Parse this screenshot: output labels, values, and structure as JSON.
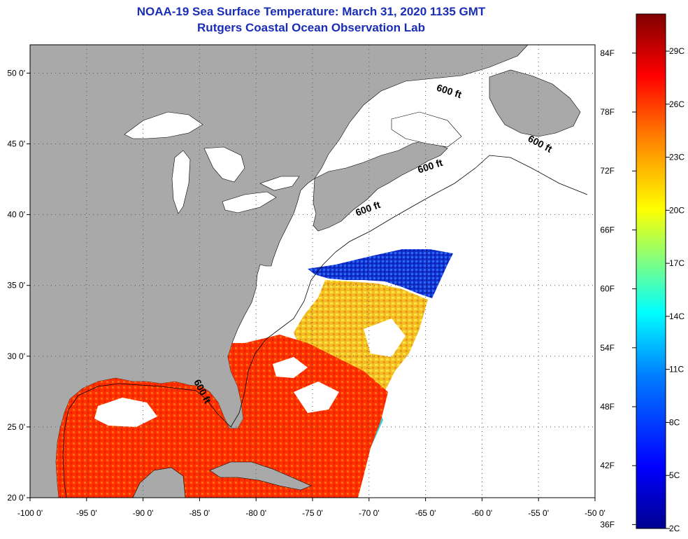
{
  "title": {
    "line1": "NOAA-19 Sea Surface Temperature:  March 31, 2020 1135 GMT",
    "line2": "Rutgers Coastal Ocean Observation Lab"
  },
  "map": {
    "lon_range": [
      -100,
      -50
    ],
    "lat_range": [
      20,
      52
    ],
    "lon_ticks": [
      {
        "value": -100,
        "label": "-100 0'"
      },
      {
        "value": -95,
        "label": "-95 0'"
      },
      {
        "value": -90,
        "label": "-90 0'"
      },
      {
        "value": -85,
        "label": "-85 0'"
      },
      {
        "value": -80,
        "label": "-80 0'"
      },
      {
        "value": -75,
        "label": "-75 0'"
      },
      {
        "value": -70,
        "label": "-70 0'"
      },
      {
        "value": -65,
        "label": "-65 0'"
      },
      {
        "value": -60,
        "label": "-60 0'"
      },
      {
        "value": -55,
        "label": "-55 0'"
      },
      {
        "value": -50,
        "label": "-50 0'"
      }
    ],
    "lat_ticks": [
      {
        "value": 20,
        "label": "20 0'"
      },
      {
        "value": 25,
        "label": "25 0'"
      },
      {
        "value": 30,
        "label": "30 0'"
      },
      {
        "value": 35,
        "label": "35 0'"
      },
      {
        "value": 40,
        "label": "40 0'"
      },
      {
        "value": 45,
        "label": "45 0'"
      },
      {
        "value": 50,
        "label": "50 0'"
      }
    ],
    "contour_labels": [
      {
        "text": "600 ft",
        "lon": -63,
        "lat": 48.5
      },
      {
        "text": "600 ft",
        "lon": -55,
        "lat": 44.8
      },
      {
        "text": "600 ft",
        "lon": -64.5,
        "lat": 43.2
      },
      {
        "text": "600 ft",
        "lon": -70,
        "lat": 40.2
      },
      {
        "text": "600 ft",
        "lon": -85,
        "lat": 27.4
      }
    ],
    "colors": {
      "land": "#a9a9a9",
      "water_nodata": "#ffffff",
      "grid": "#777777"
    }
  },
  "colorbar": {
    "fahrenheit": [
      {
        "value": 36,
        "label": "36F"
      },
      {
        "value": 42,
        "label": "42F"
      },
      {
        "value": 48,
        "label": "48F"
      },
      {
        "value": 54,
        "label": "54F"
      },
      {
        "value": 60,
        "label": "60F"
      },
      {
        "value": 66,
        "label": "66F"
      },
      {
        "value": 72,
        "label": "72F"
      },
      {
        "value": 78,
        "label": "78F"
      },
      {
        "value": 84,
        "label": "84F"
      }
    ],
    "celsius": [
      {
        "value": 2,
        "label": "2C"
      },
      {
        "value": 5,
        "label": "5C"
      },
      {
        "value": 8,
        "label": "8C"
      },
      {
        "value": 11,
        "label": "11C"
      },
      {
        "value": 14,
        "label": "14C"
      },
      {
        "value": 17,
        "label": "17C"
      },
      {
        "value": 20,
        "label": "20C"
      },
      {
        "value": 23,
        "label": "23C"
      },
      {
        "value": 26,
        "label": "26C"
      },
      {
        "value": 29,
        "label": "29C"
      }
    ],
    "celsius_range": [
      2,
      31.1
    ],
    "palette": [
      "#00008f",
      "#0000ff",
      "#0080ff",
      "#00ffff",
      "#80ff80",
      "#ffff00",
      "#ff8000",
      "#ff0000",
      "#800000"
    ]
  }
}
